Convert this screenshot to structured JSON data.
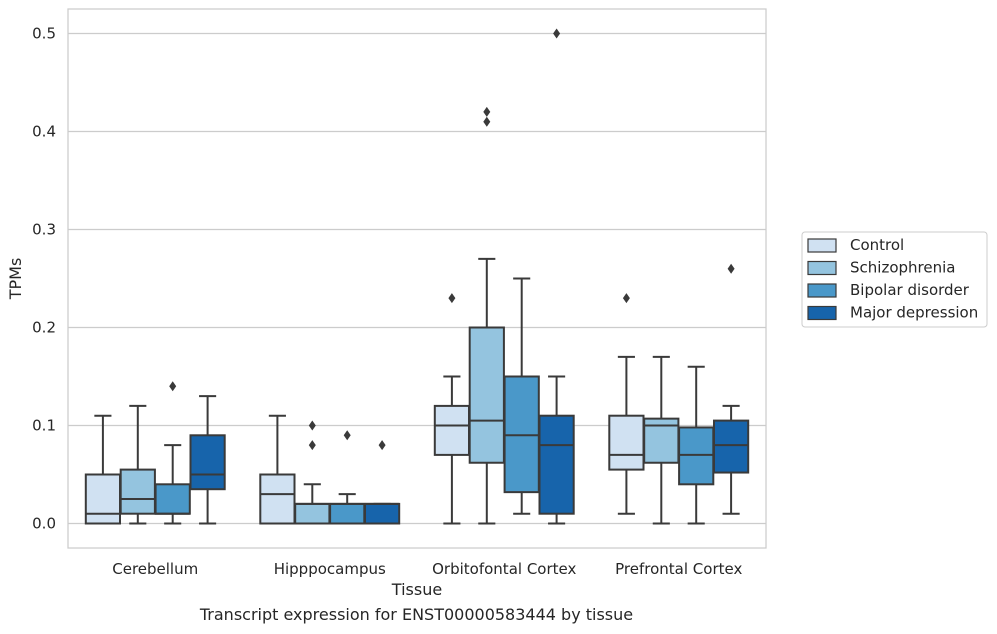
{
  "caption": "Transcript expression for ENST00000583444 by tissue",
  "chart_data": {
    "type": "box",
    "xlabel": "Tissue",
    "ylabel": "TPMs",
    "ylim": [
      -0.025,
      0.525
    ],
    "yticks": [
      0.0,
      0.1,
      0.2,
      0.3,
      0.4,
      0.5
    ],
    "ytick_labels": [
      "0.0",
      "0.1",
      "0.2",
      "0.3",
      "0.4",
      "0.5"
    ],
    "grid": "horizontal",
    "legend_position": "right",
    "categories": [
      "Cerebellum",
      "Hipppocampus",
      "Orbitofontal Cortex",
      "Prefrontal Cortex"
    ],
    "series": [
      {
        "name": "Control",
        "color": "#d0e1f2",
        "boxes": [
          {
            "whislo": 0.0,
            "q1": 0.0,
            "med": 0.01,
            "q3": 0.05,
            "whishi": 0.11,
            "fliers": []
          },
          {
            "whislo": 0.0,
            "q1": 0.0,
            "med": 0.03,
            "q3": 0.05,
            "whishi": 0.11,
            "fliers": []
          },
          {
            "whislo": 0.0,
            "q1": 0.07,
            "med": 0.1,
            "q3": 0.12,
            "whishi": 0.15,
            "fliers": [
              0.23
            ]
          },
          {
            "whislo": 0.01,
            "q1": 0.055,
            "med": 0.07,
            "q3": 0.11,
            "whishi": 0.17,
            "fliers": [
              0.23
            ]
          }
        ]
      },
      {
        "name": "Schizophrenia",
        "color": "#94c4df",
        "boxes": [
          {
            "whislo": 0.0,
            "q1": 0.01,
            "med": 0.025,
            "q3": 0.055,
            "whishi": 0.12,
            "fliers": []
          },
          {
            "whislo": 0.0,
            "q1": 0.0,
            "med": 0.02,
            "q3": 0.02,
            "whishi": 0.04,
            "fliers": [
              0.08,
              0.1
            ]
          },
          {
            "whislo": 0.0,
            "q1": 0.062,
            "med": 0.105,
            "q3": 0.2,
            "whishi": 0.27,
            "fliers": [
              0.41,
              0.42
            ]
          },
          {
            "whislo": 0.0,
            "q1": 0.062,
            "med": 0.1,
            "q3": 0.107,
            "whishi": 0.17,
            "fliers": []
          }
        ]
      },
      {
        "name": "Bipolar disorder",
        "color": "#4a98c9",
        "boxes": [
          {
            "whislo": 0.0,
            "q1": 0.01,
            "med": 0.01,
            "q3": 0.04,
            "whishi": 0.08,
            "fliers": [
              0.14
            ]
          },
          {
            "whislo": 0.0,
            "q1": 0.0,
            "med": 0.02,
            "q3": 0.02,
            "whishi": 0.03,
            "fliers": [
              0.09
            ]
          },
          {
            "whislo": 0.01,
            "q1": 0.032,
            "med": 0.09,
            "q3": 0.15,
            "whishi": 0.25,
            "fliers": []
          },
          {
            "whislo": 0.0,
            "q1": 0.04,
            "med": 0.07,
            "q3": 0.098,
            "whishi": 0.16,
            "fliers": []
          }
        ]
      },
      {
        "name": "Major depression",
        "color": "#1764ab",
        "boxes": [
          {
            "whislo": 0.0,
            "q1": 0.035,
            "med": 0.05,
            "q3": 0.09,
            "whishi": 0.13,
            "fliers": []
          },
          {
            "whislo": 0.0,
            "q1": 0.0,
            "med": 0.02,
            "q3": 0.02,
            "whishi": 0.02,
            "fliers": [
              0.08
            ]
          },
          {
            "whislo": 0.0,
            "q1": 0.01,
            "med": 0.08,
            "q3": 0.11,
            "whishi": 0.15,
            "fliers": [
              0.5
            ]
          },
          {
            "whislo": 0.01,
            "q1": 0.052,
            "med": 0.08,
            "q3": 0.105,
            "whishi": 0.12,
            "fliers": [
              0.26
            ]
          }
        ]
      }
    ]
  }
}
